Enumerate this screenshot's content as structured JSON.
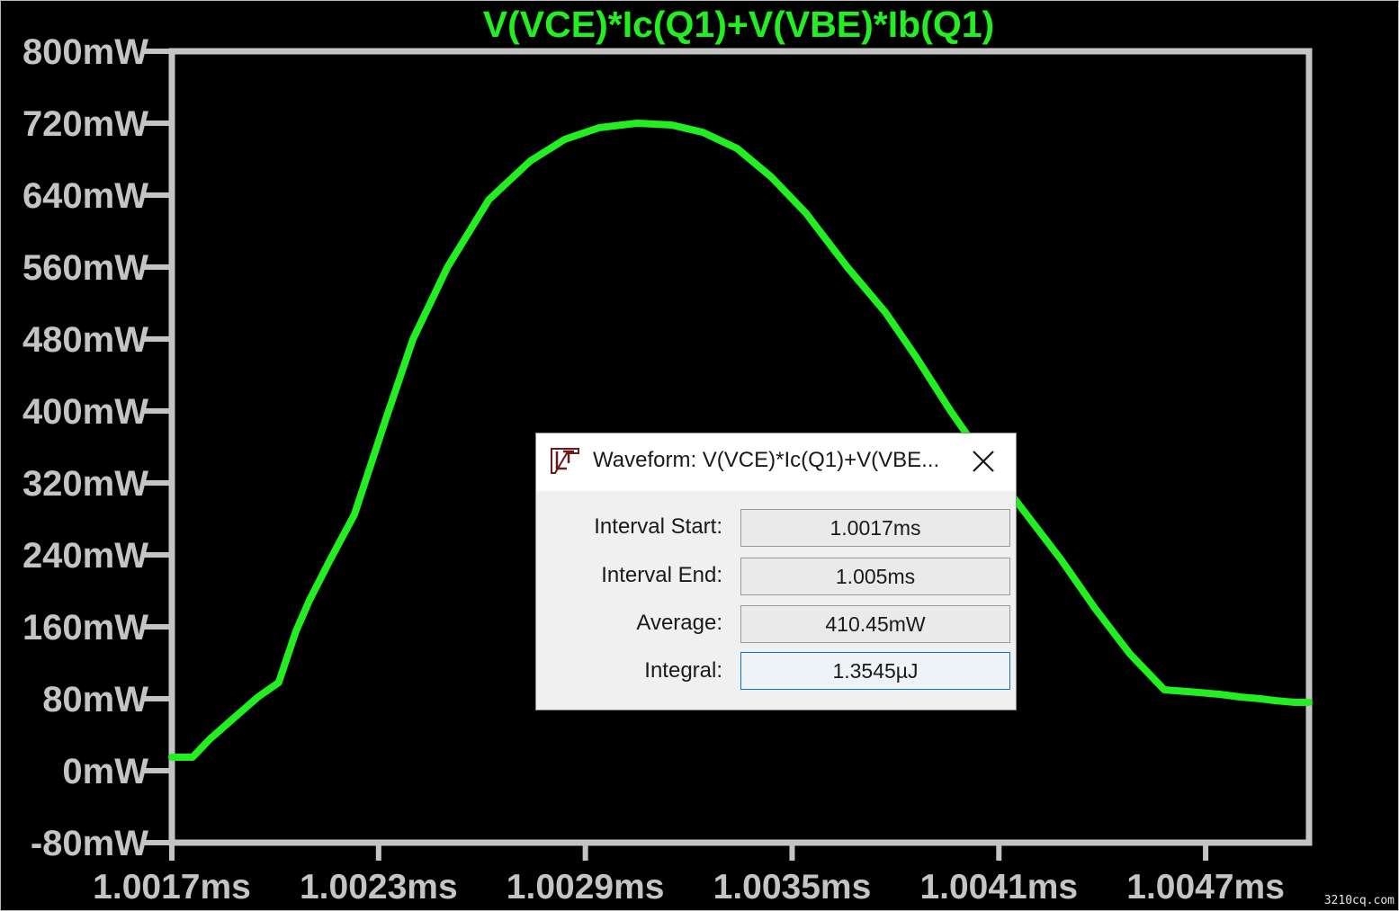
{
  "plot": {
    "title": "V(VCE)*Ic(Q1)+V(VBE)*Ib(Q1)",
    "trace_color": "#22ee22",
    "axis_color": "#c4c4c4",
    "background": "#000000"
  },
  "chart_data": {
    "type": "line",
    "title": "V(VCE)*Ic(Q1)+V(VBE)*Ib(Q1)",
    "xlabel": "",
    "ylabel": "",
    "x_unit": "ms",
    "y_unit": "mW",
    "xlim": [
      1.0017,
      1.005
    ],
    "ylim": [
      -80,
      800
    ],
    "x_tick_labels": [
      "1.0017ms",
      "1.0023ms",
      "1.0029ms",
      "1.0035ms",
      "1.0041ms",
      "1.0047ms"
    ],
    "y_tick_labels": [
      "800mW",
      "720mW",
      "640mW",
      "560mW",
      "480mW",
      "400mW",
      "320mW",
      "240mW",
      "160mW",
      "80mW",
      "0mW",
      "-80mW"
    ],
    "series": [
      {
        "color": "#22ee22",
        "x": [
          1.0017,
          1.00176,
          1.00181,
          1.00189,
          1.00195,
          1.00201,
          1.00206,
          1.0021,
          1.00216,
          1.00223,
          1.00232,
          1.0024,
          1.0025,
          1.00262,
          1.00274,
          1.00284,
          1.00294,
          1.00305,
          1.00315,
          1.00324,
          1.00334,
          1.00344,
          1.00354,
          1.00366,
          1.00377,
          1.00386,
          1.00396,
          1.00406,
          1.00417,
          1.00428,
          1.00438,
          1.00448,
          1.00458,
          1.00468,
          1.00474,
          1.0048,
          1.00486,
          1.0049,
          1.00496,
          1.005
        ],
        "y": [
          15,
          15,
          35,
          62,
          82,
          98,
          155,
          190,
          235,
          285,
          390,
          480,
          560,
          635,
          678,
          702,
          715,
          720,
          718,
          710,
          692,
          660,
          620,
          560,
          510,
          460,
          400,
          345,
          290,
          235,
          180,
          130,
          90,
          87,
          85,
          82,
          80,
          78,
          76,
          76
        ]
      }
    ]
  },
  "dialog": {
    "title": "Waveform: V(VCE)*Ic(Q1)+V(VBE...",
    "icon": "ltspice-logo-icon",
    "close_icon": "close-icon",
    "interval_start_label": "Interval Start:",
    "interval_start_value": "1.0017ms",
    "interval_end_label": "Interval End:",
    "interval_end_value": "1.005ms",
    "average_label": "Average:",
    "average_value": "410.45mW",
    "integral_label": "Integral:",
    "integral_value": "1.3545µJ"
  },
  "watermark": "3210cq.com"
}
